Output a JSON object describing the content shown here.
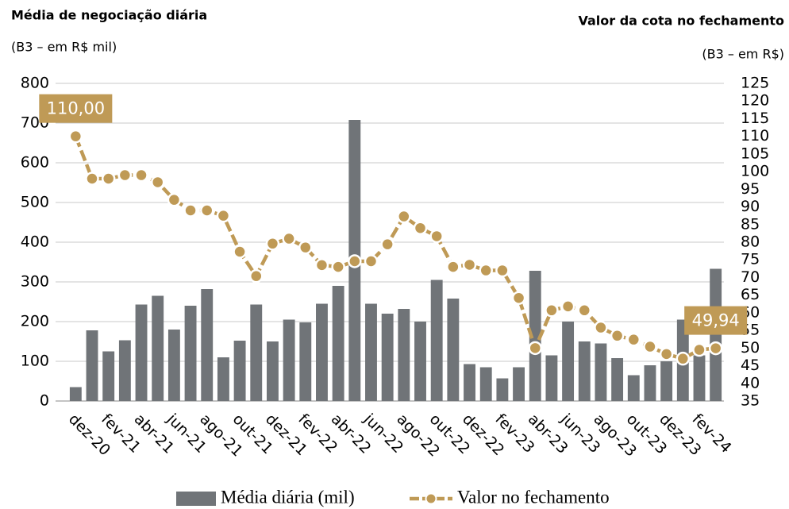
{
  "chart_data": {
    "type": "bar",
    "title": "Média de negociação diária",
    "subtitle": "(B3 – em R$ mil)",
    "y2_title": "Valor da cota no fechamento",
    "y2_subtitle": "(B3 – em R$)",
    "categories": [
      "dez-20",
      null,
      "fev-21",
      null,
      "abr-21",
      null,
      "jun-21",
      null,
      "ago-21",
      null,
      "out-21",
      null,
      "dez-21",
      null,
      "fev-22",
      null,
      "abr-22",
      null,
      "jun-22",
      null,
      "ago-22",
      null,
      "out-22",
      null,
      "dez-22",
      null,
      "fev-23",
      null,
      "abr-23",
      null,
      "jun-23",
      null,
      "ago-23",
      null,
      "out-23",
      null,
      "dez-23",
      null,
      "fev-24",
      null
    ],
    "series": [
      {
        "name": "Média diária (mil)",
        "type": "bar",
        "color": "#707478",
        "values": [
          35,
          178,
          125,
          153,
          243,
          265,
          180,
          240,
          282,
          110,
          152,
          243,
          150,
          205,
          198,
          245,
          290,
          708,
          245,
          220,
          232,
          200,
          305,
          258,
          93,
          85,
          57,
          85,
          328,
          115,
          200,
          150,
          145,
          108,
          65,
          90,
          100,
          205,
          115,
          333
        ]
      },
      {
        "name": "Valor no fechamento",
        "type": "line",
        "axis": "y2",
        "color": "#bf9a56",
        "values": [
          110,
          98,
          98,
          99,
          99,
          97,
          92,
          89,
          89,
          87.5,
          77.3,
          70.4,
          79.6,
          81,
          78.5,
          73.5,
          73,
          74.6,
          74.6,
          79.4,
          87.3,
          84,
          81.7,
          73,
          73.6,
          72,
          72,
          64.2,
          50,
          60.7,
          61.8,
          60.7,
          55.8,
          53.5,
          52.4,
          50.4,
          48.3,
          47,
          49.5,
          49.94
        ],
        "value_labels": [
          "110,00",
          null,
          null,
          null,
          null,
          null,
          null,
          null,
          null,
          null,
          null,
          null,
          null,
          null,
          null,
          null,
          null,
          null,
          null,
          null,
          null,
          null,
          null,
          null,
          null,
          null,
          null,
          null,
          null,
          null,
          null,
          null,
          null,
          null,
          null,
          null,
          null,
          null,
          null,
          "49,94"
        ]
      }
    ],
    "ylim": [
      0,
      800
    ],
    "yticks": [
      0,
      100,
      200,
      300,
      400,
      500,
      600,
      700,
      800
    ],
    "y2lim": [
      35,
      125
    ],
    "y2ticks": [
      35,
      40,
      45,
      50,
      55,
      60,
      65,
      70,
      75,
      80,
      85,
      90,
      95,
      100,
      105,
      110,
      115,
      120,
      125
    ],
    "grid": true,
    "legend": "bottom"
  }
}
